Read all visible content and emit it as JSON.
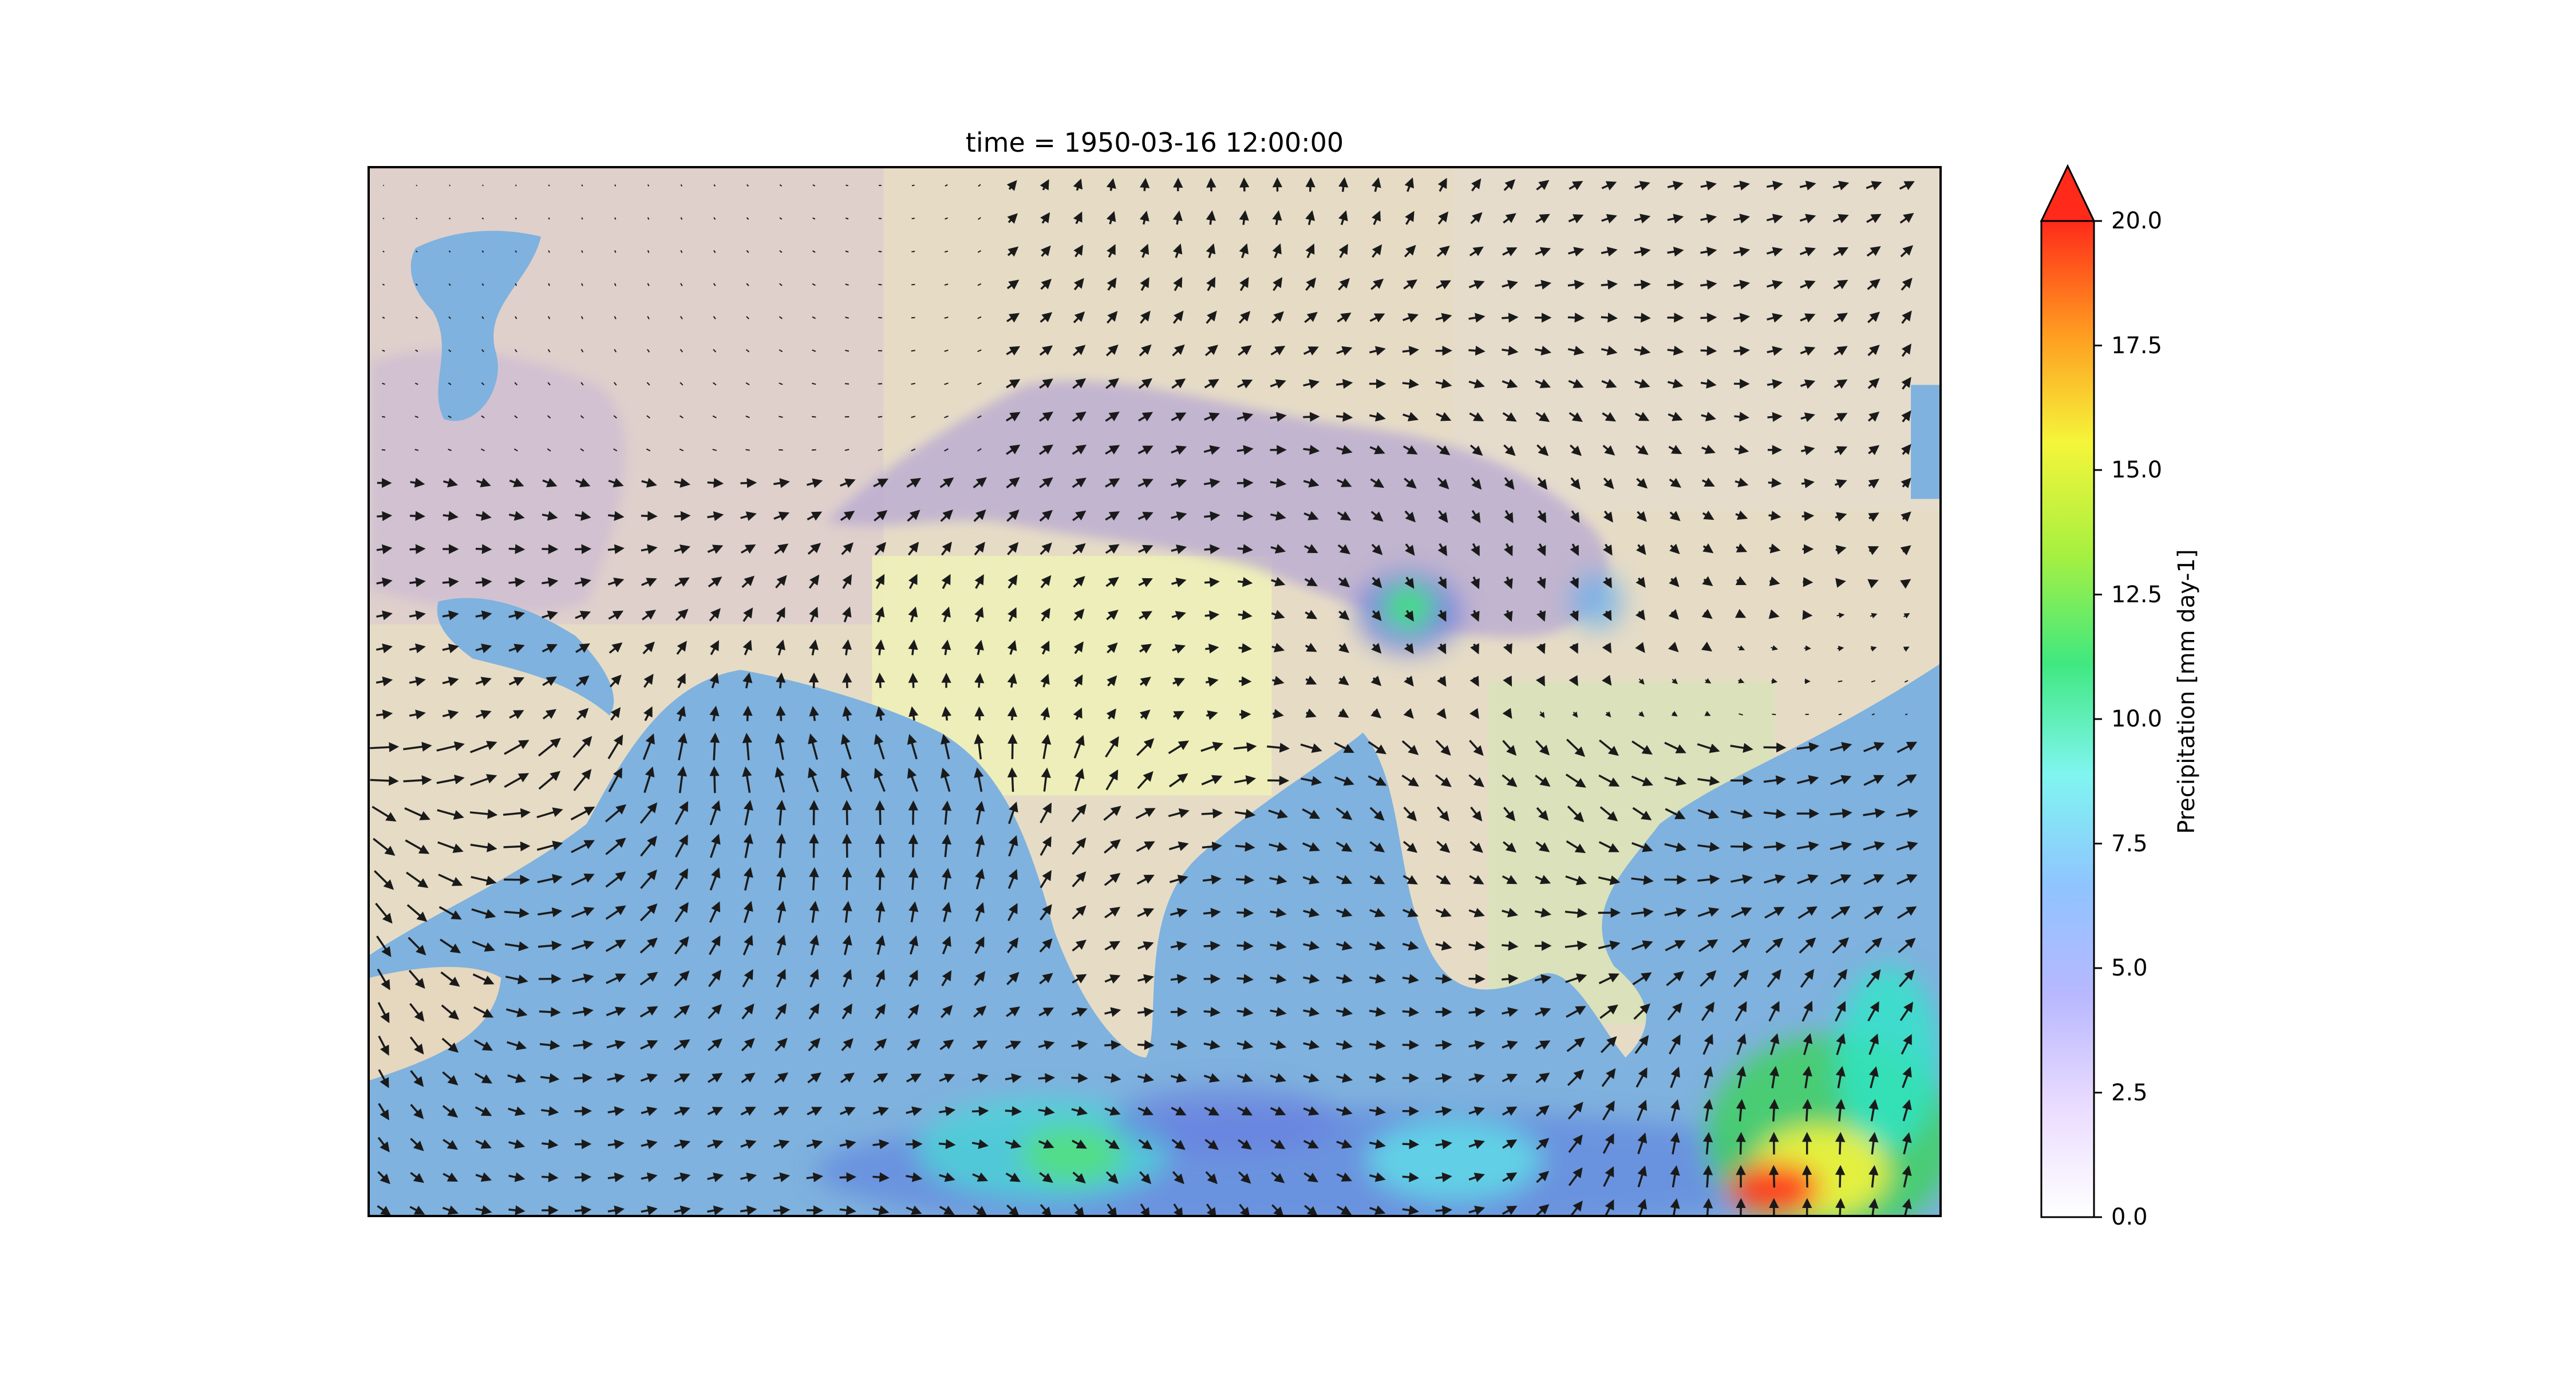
{
  "title": "time = 1950-03-16 12:00:00",
  "colorbar": {
    "label": "Precipitation [mm day-1]",
    "ticks": [
      "0.0",
      "2.5",
      "5.0",
      "7.5",
      "10.0",
      "12.5",
      "15.0",
      "17.5",
      "20.0"
    ],
    "min": 0,
    "max": 20,
    "extend": "max",
    "colors": [
      "#ffffff",
      "#eadcff",
      "#b8b8ff",
      "#8fc4ff",
      "#80f5f0",
      "#40e880",
      "#a8f040",
      "#f5f53a",
      "#ff9a20",
      "#ff2a1a"
    ]
  },
  "map": {
    "land_color": "#e9e0bf",
    "ocean_color": "#7fb2de",
    "mountain_color": "#b7a8d2",
    "vector_color": "#1a1a1a"
  }
}
